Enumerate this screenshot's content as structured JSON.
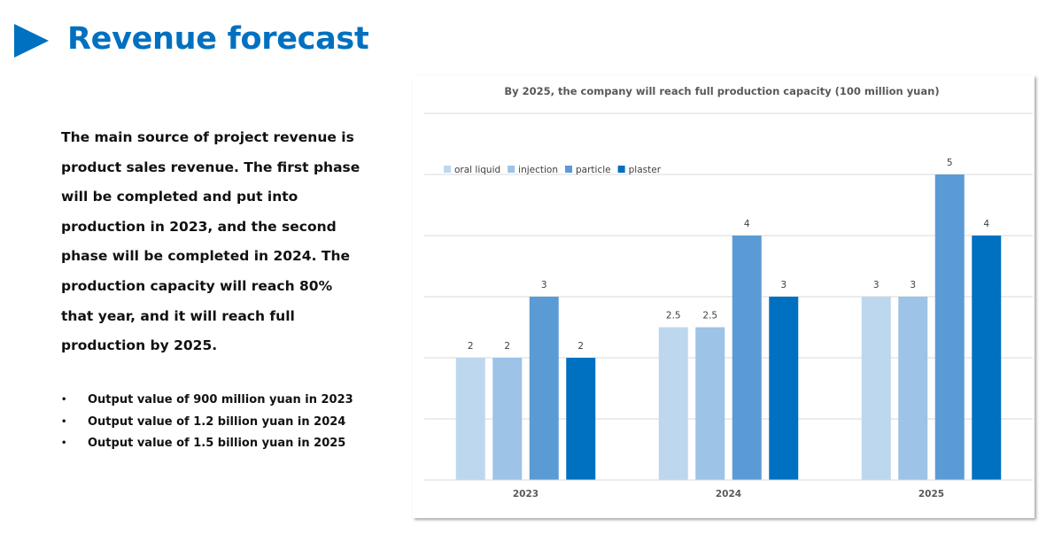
{
  "slide": {
    "title": "Revenue forecast",
    "intro": "The main source of project revenue is product sales revenue. The first phase will be completed and put into production in 2023, and the second phase will be completed in 2024. The production capacity will reach 80% that year, and it will reach full production by 2025.",
    "bullets": [
      "Output value of 900 million yuan in 2023",
      "Output value of 1.2 billion yuan in 2024",
      "Output value of 1.5 billion yuan in 2025"
    ],
    "accent_color": "#0070c0"
  },
  "chart_data": {
    "type": "bar",
    "title": "By 2025, the company will reach full production capacity (100 million yuan)",
    "categories": [
      "2023",
      "2024",
      "2025"
    ],
    "series": [
      {
        "name": "oral liquid",
        "values": [
          2,
          2.5,
          3
        ],
        "color": "#bdd7ee"
      },
      {
        "name": "injection",
        "values": [
          2,
          2.5,
          3
        ],
        "color": "#9dc3e6"
      },
      {
        "name": "particle",
        "values": [
          3,
          4,
          5
        ],
        "color": "#5b9bd5"
      },
      {
        "name": "plaster",
        "values": [
          2,
          3,
          4
        ],
        "color": "#0070c0"
      }
    ],
    "ylim": [
      0,
      6
    ],
    "grid": true,
    "legend": "top-left",
    "data_labels": true
  }
}
